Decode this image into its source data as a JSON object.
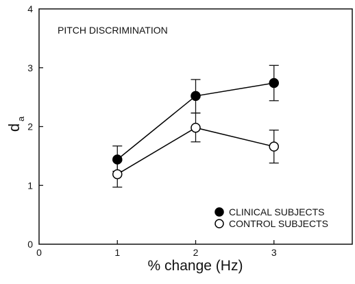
{
  "chart_data": {
    "type": "line",
    "annotation": "PITCH DISCRIMINATION",
    "xlabel": "% change (Hz)",
    "ylabel_main": "d",
    "ylabel_sub": "a",
    "xlim": [
      0,
      4
    ],
    "ylim": [
      0,
      4
    ],
    "x_ticks": [
      0,
      1,
      2,
      3
    ],
    "x_tick_labels": [
      "0",
      "1",
      "2",
      "3"
    ],
    "y_ticks": [
      0,
      1,
      2,
      3,
      4
    ],
    "y_tick_labels": [
      "0",
      "1",
      "2",
      "3",
      "4"
    ],
    "x": [
      1,
      2,
      3
    ],
    "grid": false,
    "legend_placement": "bottom-right",
    "series": [
      {
        "name": "CLINICAL SUBJECTS",
        "marker": "filled-circle",
        "color": "#000000",
        "values": [
          1.44,
          2.52,
          2.74
        ],
        "err_low": [
          1.24,
          2.23,
          2.44
        ],
        "err_high": [
          1.67,
          2.8,
          3.04
        ]
      },
      {
        "name": "CONTROL SUBJECTS",
        "marker": "open-circle",
        "color": "#000000",
        "values": [
          1.19,
          1.98,
          1.66
        ],
        "err_low": [
          0.97,
          1.74,
          1.38
        ],
        "err_high": [
          1.42,
          2.23,
          1.94
        ]
      }
    ]
  }
}
